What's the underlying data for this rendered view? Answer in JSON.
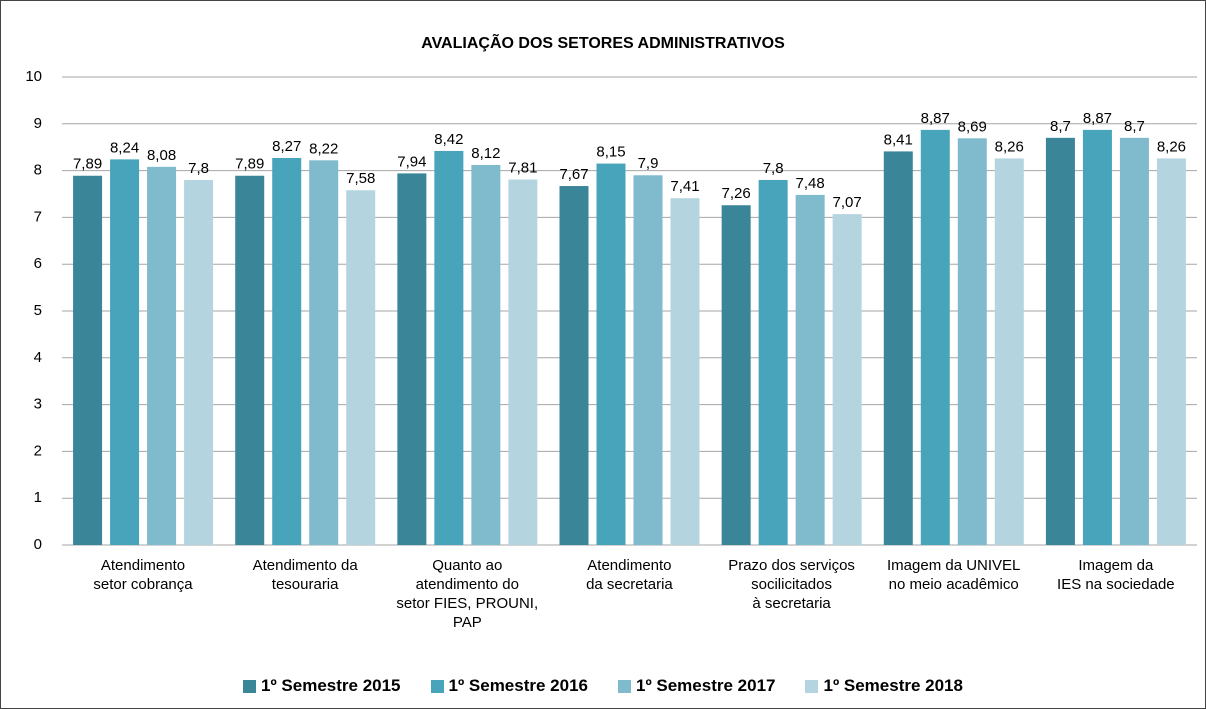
{
  "chart_data": {
    "type": "bar",
    "title": "AVALIAÇÃO DOS SETORES ADMINISTRATIVOS",
    "categories": [
      "Atendimento\nsetor cobrança",
      "Atendimento da\ntesouraria",
      "Quanto ao\natendimento do\nsetor FIES, PROUNI,\nPAP",
      "Atendimento\nda secretaria",
      "Prazo  dos serviços\nsocilicitados\nà secretaria",
      "Imagem da UNIVEL\nno meio acadêmico",
      "Imagem da\nIES na sociedade"
    ],
    "series": [
      {
        "name": "1º Semestre 2015",
        "color": "#3a8597",
        "values": [
          7.89,
          7.89,
          7.94,
          7.67,
          7.26,
          8.41,
          8.7
        ],
        "value_labels": [
          "7,89",
          "7,89",
          "7,94",
          "7,67",
          "7,26",
          "8,41",
          "8,7"
        ]
      },
      {
        "name": "1º Semestre 2016",
        "color": "#48a4bb",
        "values": [
          8.24,
          8.27,
          8.42,
          8.15,
          7.8,
          8.87,
          8.87
        ],
        "value_labels": [
          "8,24",
          "8,27",
          "8,42",
          "8,15",
          "7,8",
          "8,87",
          "8,87"
        ]
      },
      {
        "name": "1º Semestre 2017",
        "color": "#7fbacd",
        "values": [
          8.08,
          8.22,
          8.12,
          7.9,
          7.48,
          8.69,
          8.7
        ],
        "value_labels": [
          "8,08",
          "8,22",
          "8,12",
          "7,9",
          "7,48",
          "8,69",
          "8,7"
        ]
      },
      {
        "name": "1º Semestre 2018",
        "color": "#b4d5e0",
        "values": [
          7.8,
          7.58,
          7.81,
          7.41,
          7.07,
          8.26,
          8.26
        ],
        "value_labels": [
          "7,8",
          "7,58",
          "7,81",
          "7,41",
          "7,07",
          "8,26",
          "8,26"
        ]
      }
    ],
    "ylim": [
      0,
      10
    ],
    "yticks": [
      0,
      1,
      2,
      3,
      4,
      5,
      6,
      7,
      8,
      9,
      10
    ],
    "grid": true,
    "legend": "bottom"
  }
}
